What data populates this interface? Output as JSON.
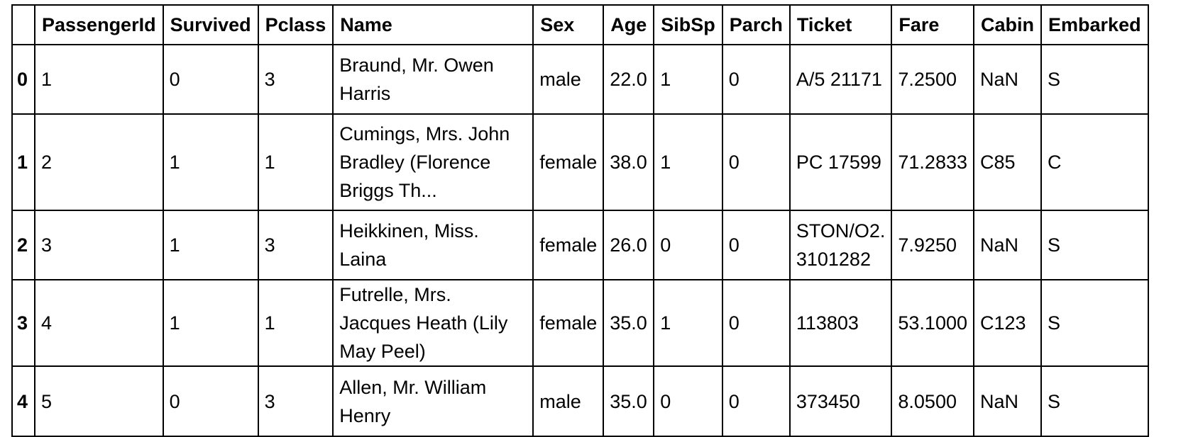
{
  "table": {
    "columns": [
      "",
      "PassengerId",
      "Survived",
      "Pclass",
      "Name",
      "Sex",
      "Age",
      "SibSp",
      "Parch",
      "Ticket",
      "Fare",
      "Cabin",
      "Embarked"
    ],
    "rows": [
      {
        "index": "0",
        "PassengerId": "1",
        "Survived": "0",
        "Pclass": "3",
        "Name": "Braund, Mr. Owen Harris",
        "Sex": "male",
        "Age": "22.0",
        "SibSp": "1",
        "Parch": "0",
        "Ticket": "A/5 21171",
        "Fare": "7.2500",
        "Cabin": "NaN",
        "Embarked": "S"
      },
      {
        "index": "1",
        "PassengerId": "2",
        "Survived": "1",
        "Pclass": "1",
        "Name": "Cumings, Mrs. John Bradley (Florence Briggs Th...",
        "Sex": "female",
        "Age": "38.0",
        "SibSp": "1",
        "Parch": "0",
        "Ticket": "PC 17599",
        "Fare": "71.2833",
        "Cabin": "C85",
        "Embarked": "C"
      },
      {
        "index": "2",
        "PassengerId": "3",
        "Survived": "1",
        "Pclass": "3",
        "Name": "Heikkinen, Miss. Laina",
        "Sex": "female",
        "Age": "26.0",
        "SibSp": "0",
        "Parch": "0",
        "Ticket": "STON/O2. 3101282",
        "Fare": "7.9250",
        "Cabin": "NaN",
        "Embarked": "S"
      },
      {
        "index": "3",
        "PassengerId": "4",
        "Survived": "1",
        "Pclass": "1",
        "Name": "Futrelle, Mrs. Jacques Heath (Lily May Peel)",
        "Sex": "female",
        "Age": "35.0",
        "SibSp": "1",
        "Parch": "0",
        "Ticket": "113803",
        "Fare": "53.1000",
        "Cabin": "C123",
        "Embarked": "S"
      },
      {
        "index": "4",
        "PassengerId": "5",
        "Survived": "0",
        "Pclass": "3",
        "Name": "Allen, Mr. William Henry",
        "Sex": "male",
        "Age": "35.0",
        "SibSp": "0",
        "Parch": "0",
        "Ticket": "373450",
        "Fare": "8.0500",
        "Cabin": "NaN",
        "Embarked": "S"
      }
    ]
  }
}
